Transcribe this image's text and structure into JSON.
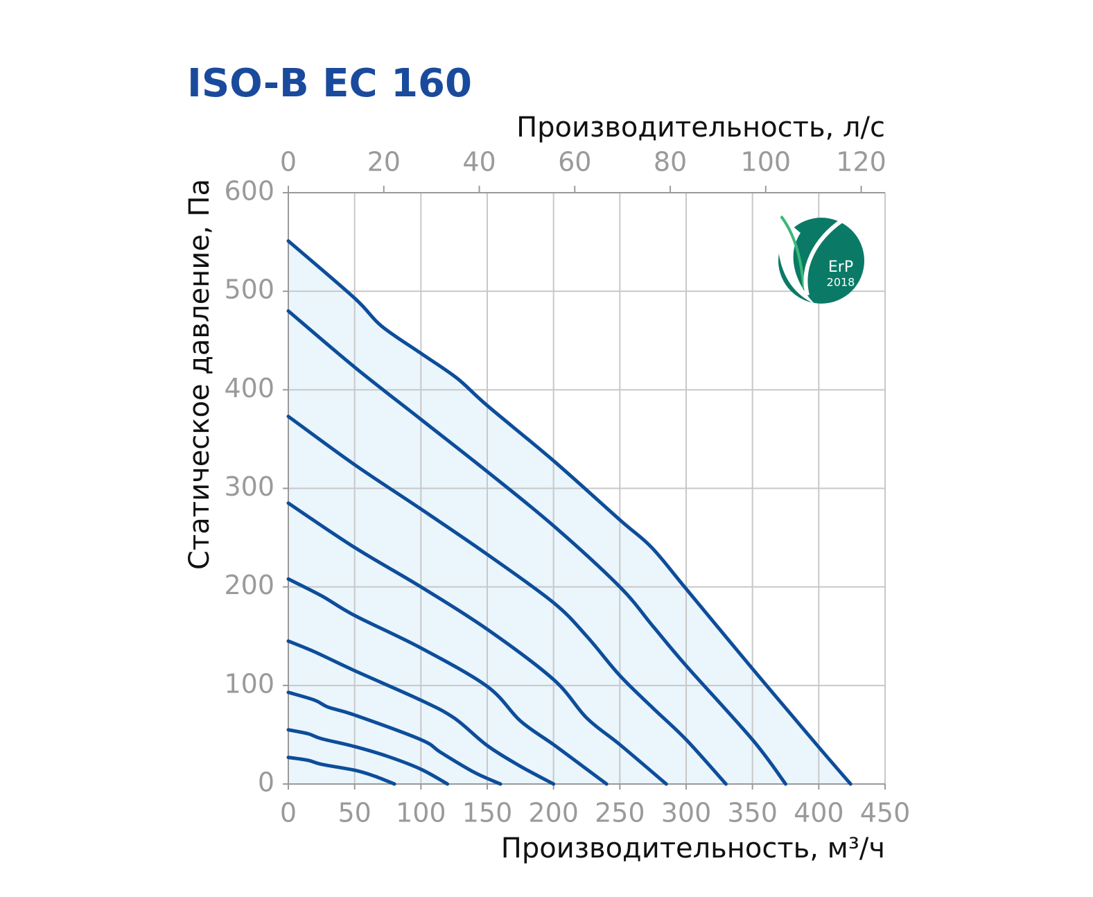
{
  "chart_data": {
    "type": "line",
    "title": "ISO-B EC 160",
    "x_label": "Производительность, м³/ч",
    "x2_label": "Производительность, л/с",
    "y_label": "Статическое давление, Па",
    "xlim": [
      0,
      450
    ],
    "xticks": [
      0,
      50,
      100,
      150,
      200,
      250,
      300,
      350,
      400,
      450
    ],
    "x2lim": [
      0,
      125
    ],
    "x2ticks": [
      0,
      20,
      40,
      60,
      80,
      100,
      120
    ],
    "ylim": [
      0,
      600
    ],
    "yticks": [
      0,
      100,
      200,
      300,
      400,
      500,
      600
    ],
    "grid": true,
    "fill": "#eaf5fc",
    "series": [
      {
        "color": "#0d4d9a",
        "x": [
          0,
          50,
          70,
          100,
          127,
          150,
          200,
          250,
          274,
          300,
          350,
          399,
          424
        ],
        "values": [
          551,
          493,
          465,
          437,
          412,
          384,
          328,
          268,
          240,
          198,
          117,
          39,
          0
        ]
      },
      {
        "color": "#0d4d9a",
        "x": [
          0,
          50,
          100,
          150,
          200,
          250,
          275,
          300,
          350,
          375
        ],
        "values": [
          480,
          423,
          370,
          317,
          262,
          200,
          160,
          120,
          45,
          0
        ]
      },
      {
        "color": "#0d4d9a",
        "x": [
          0,
          50,
          100,
          150,
          200,
          225,
          250,
          275,
          300,
          330
        ],
        "values": [
          373,
          324,
          279,
          233,
          184,
          150,
          110,
          77,
          45,
          0
        ]
      },
      {
        "color": "#0d4d9a",
        "x": [
          0,
          50,
          100,
          150,
          200,
          225,
          250,
          285
        ],
        "values": [
          285,
          240,
          200,
          157,
          106,
          67,
          40,
          0
        ]
      },
      {
        "color": "#0d4d9a",
        "x": [
          0,
          25,
          50,
          100,
          150,
          175,
          200,
          225,
          240
        ],
        "values": [
          208,
          191,
          171,
          138,
          99,
          64,
          40,
          15,
          0
        ]
      },
      {
        "color": "#0d4d9a",
        "x": [
          0,
          20,
          50,
          100,
          125,
          150,
          175,
          200
        ],
        "values": [
          145,
          134,
          115,
          85,
          67,
          39,
          18,
          0
        ]
      },
      {
        "color": "#0d4d9a",
        "x": [
          0,
          20,
          30,
          50,
          100,
          115,
          140,
          160
        ],
        "values": [
          93,
          85,
          78,
          70,
          45,
          32,
          12,
          0
        ]
      },
      {
        "color": "#0d4d9a",
        "x": [
          0,
          15,
          25,
          50,
          75,
          100,
          120
        ],
        "values": [
          55,
          51,
          46,
          38,
          28,
          15,
          0
        ]
      },
      {
        "color": "#0d4d9a",
        "x": [
          0,
          15,
          25,
          50,
          65,
          80
        ],
        "values": [
          27,
          24,
          20,
          14,
          8,
          0
        ]
      }
    ]
  },
  "logo": {
    "text": "ErP",
    "year": "2018"
  }
}
